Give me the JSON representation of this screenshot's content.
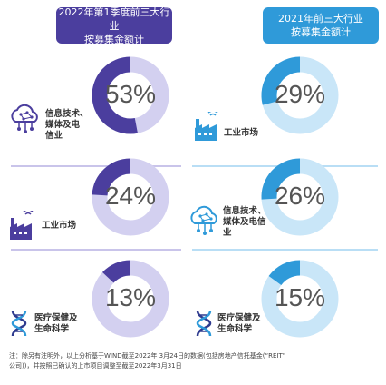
{
  "headers": {
    "left_line1": "2022年第1季度前三大行业",
    "left_line2": "按募集金额计",
    "right_line1": "2021年前三大行业",
    "right_line2": "按募集金额计"
  },
  "colors": {
    "left_dark": "#4b3e9e",
    "left_light": "#d3d0f0",
    "right_dark": "#2f9ad9",
    "right_light": "#c9e6f8"
  },
  "chart_data": [
    {
      "type": "pie",
      "title": "2022年第1季度前三大行业 按募集金额计",
      "series": [
        {
          "name": "信息技术、媒体及电信业",
          "value": 53
        },
        {
          "name": "工业市场",
          "value": 24
        },
        {
          "name": "医疗保健及生命科学",
          "value": 13
        }
      ]
    },
    {
      "type": "pie",
      "title": "2021年前三大行业 按募集金额计",
      "series": [
        {
          "name": "工业市场",
          "value": 29
        },
        {
          "name": "信息技术、媒体及电信业",
          "value": 26
        },
        {
          "name": "医疗保健及生命科学",
          "value": 15
        }
      ]
    }
  ],
  "left": [
    {
      "pct": "53%",
      "label_lines": [
        "信息技术、",
        "媒体及电",
        "信业"
      ]
    },
    {
      "pct": "24%",
      "label_lines": [
        "工业市场"
      ]
    },
    {
      "pct": "13%",
      "label_lines": [
        "医疗保健及",
        "生命科学"
      ]
    }
  ],
  "right": [
    {
      "pct": "29%",
      "label_lines": [
        "工业市场"
      ]
    },
    {
      "pct": "26%",
      "label_lines": [
        "信息技术、",
        "媒体及电信",
        "业"
      ]
    },
    {
      "pct": "15%",
      "label_lines": [
        "医疗保健及",
        "生命科学"
      ]
    }
  ],
  "footnote": {
    "line1": "注：除另有注明外，以上分析基于WIND截至2022年  3月24日的数据(包括房地产信托基金(“REIT”",
    "line2": "公司))，并按照已确认的上市项目调整至截至2022年3月31日"
  }
}
